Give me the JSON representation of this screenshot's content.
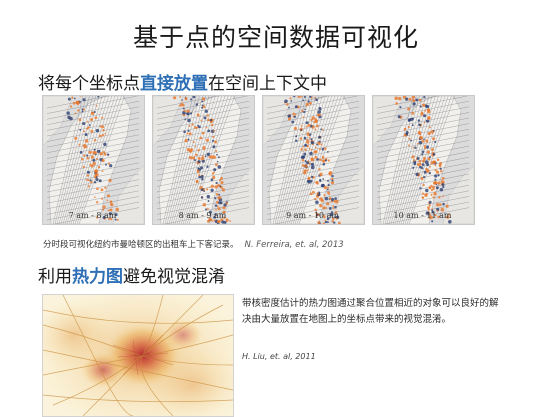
{
  "slide": {
    "title": "基于点的空间数据可视化",
    "bullet1": {
      "before": "将每个坐标点",
      "highlight": "直接放置",
      "after": "在空间上下文中"
    },
    "panels": [
      {
        "label": "7 am - 8 am"
      },
      {
        "label": "8 am - 9 am"
      },
      {
        "label": "9 am - 10 am"
      },
      {
        "label": "10 am - 11 am"
      }
    ],
    "caption1": "分时段可视化纽约市曼哈顿区的出租车上下客记录。",
    "citation1": "N. Ferreira, et. al, 2013",
    "bullet2": {
      "before": "利用",
      "highlight": "热力图",
      "after": "避免视觉混淆"
    },
    "description": "带核密度估计的热力图通过聚合位置相近的对象可以良好的解决由大量放置在地图上的坐标点带来的视觉混淆。",
    "citation2": "H. Liu, et. al, 2011",
    "colors": {
      "highlight": "#2f6fb5",
      "pickup": "#e8772a",
      "dropoff": "#2c3e72",
      "heat": "#c8323c"
    }
  }
}
